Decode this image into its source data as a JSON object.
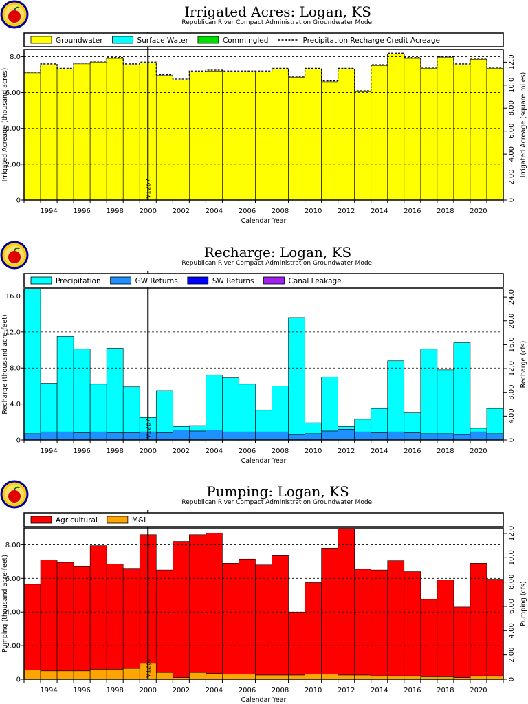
{
  "chart_data": [
    {
      "type": "bar",
      "title": "Irrigated Acres: Logan, KS",
      "subtitle": "Republican River Compact Administration Groundwater Model",
      "xlabel": "Calendar Year",
      "ylabel": "Irrigated Acreage (thousand acres)",
      "y2label": "Irrigated Acreage (square miles)",
      "xlim": [
        1993,
        2021
      ],
      "ylim": [
        0,
        8.4
      ],
      "yticks": [
        0,
        2.0,
        4.0,
        6.0,
        8.0
      ],
      "ytick_labels": [
        "0",
        "2.00",
        "4.00",
        "6.00",
        "8.0"
      ],
      "y2ticks": [
        0,
        2.0,
        4.0,
        6.0,
        8.0,
        10.0,
        12.0
      ],
      "y2tick_labels": [
        "0",
        "2.00",
        "4.00",
        "6.00",
        "8.00",
        "10.0",
        "12.0"
      ],
      "y2lim": [
        0,
        13.1
      ],
      "grid": "horizontal-dashed",
      "legend_position": "top",
      "legend": [
        "Groundwater",
        "Surface Water",
        "Commingled",
        "Precipitation Recharge Credit Acreage"
      ],
      "xtick_labels": [
        "1994",
        "1996",
        "1998",
        "2000",
        "2002",
        "2004",
        "2006",
        "2008",
        "2010",
        "2012",
        "2014",
        "2016",
        "2018",
        "2020"
      ],
      "marker_label": "V12p7",
      "marker_year": 2000.5,
      "stacked": true,
      "years": [
        1993,
        1994,
        1995,
        1996,
        1997,
        1998,
        1999,
        2000,
        2001,
        2002,
        2003,
        2004,
        2005,
        2006,
        2007,
        2008,
        2009,
        2010,
        2011,
        2012,
        2013,
        2014,
        2015,
        2016,
        2017,
        2018,
        2019,
        2020,
        2021
      ],
      "series": [
        {
          "name": "Groundwater",
          "color": "#ffff00",
          "values": [
            7.1,
            7.55,
            7.3,
            7.6,
            7.7,
            7.9,
            7.55,
            7.65,
            6.95,
            6.7,
            7.15,
            7.2,
            7.15,
            7.15,
            7.15,
            7.3,
            6.85,
            7.3,
            6.6,
            7.3,
            6.05,
            7.5,
            8.15,
            7.9,
            7.35,
            7.95,
            7.55,
            7.85,
            7.35
          ]
        },
        {
          "name": "Surface Water",
          "color": "#00ffff",
          "values": [
            0,
            0,
            0,
            0,
            0,
            0,
            0,
            0,
            0,
            0,
            0,
            0,
            0,
            0,
            0,
            0,
            0,
            0,
            0,
            0,
            0,
            0,
            0,
            0,
            0,
            0,
            0,
            0,
            0
          ]
        },
        {
          "name": "Commingled",
          "color": "#00dd00",
          "values": [
            0,
            0,
            0,
            0,
            0,
            0,
            0,
            0,
            0,
            0,
            0,
            0,
            0,
            0,
            0,
            0,
            0,
            0,
            0,
            0,
            0,
            0,
            0,
            0,
            0,
            0,
            0,
            0,
            0
          ]
        }
      ],
      "dashed_line": {
        "name": "Precipitation Recharge Credit Acreage",
        "values": [
          7.15,
          7.6,
          7.35,
          7.65,
          7.75,
          7.95,
          7.6,
          7.7,
          7.0,
          6.75,
          7.2,
          7.25,
          7.2,
          7.2,
          7.2,
          7.35,
          6.9,
          7.35,
          6.65,
          7.35,
          6.1,
          7.55,
          8.2,
          7.95,
          7.4,
          8.0,
          7.6,
          7.9,
          7.4
        ]
      }
    },
    {
      "type": "bar",
      "title": "Recharge: Logan, KS",
      "subtitle": "Republican River Compact Administration Groundwater Model",
      "xlabel": "Calendar Year",
      "ylabel": "Recharge (thousand acre-feet)",
      "y2label": "Recharge (cfs)",
      "xlim": [
        1993,
        2021
      ],
      "ylim": [
        0,
        16.8
      ],
      "yticks": [
        0,
        4.0,
        8.0,
        12.0,
        16.0
      ],
      "ytick_labels": [
        "0",
        "4.0",
        "8.0",
        "12.0",
        "16.0"
      ],
      "y2ticks": [
        0,
        4.0,
        8.0,
        12.0,
        16.0,
        20.0,
        24.0
      ],
      "y2tick_labels": [
        "0",
        "4.00",
        "8.00",
        "12.0",
        "16.0",
        "20.0",
        "24.0"
      ],
      "y2lim": [
        0,
        25.4
      ],
      "grid": "horizontal-dashed",
      "legend_position": "top",
      "legend": [
        "Precipitation",
        "GW Returns",
        "SW Returns",
        "Canal Leakage"
      ],
      "xtick_labels": [
        "1994",
        "1996",
        "1998",
        "2000",
        "2002",
        "2004",
        "2006",
        "2008",
        "2010",
        "2012",
        "2014",
        "2016",
        "2018",
        "2020"
      ],
      "marker_label": "V12p7",
      "marker_year": 2000.5,
      "stacked": true,
      "years": [
        1993,
        1994,
        1995,
        1996,
        1997,
        1998,
        1999,
        2000,
        2001,
        2002,
        2003,
        2004,
        2005,
        2006,
        2007,
        2008,
        2009,
        2010,
        2011,
        2012,
        2013,
        2014,
        2015,
        2016,
        2017,
        2018,
        2019,
        2020,
        2021
      ],
      "series": [
        {
          "name": "GW Returns",
          "color": "#1e90ff",
          "values": [
            0.7,
            0.9,
            0.9,
            0.8,
            0.9,
            0.8,
            0.8,
            0.9,
            0.8,
            1.1,
            1.0,
            1.1,
            0.9,
            0.9,
            0.9,
            0.9,
            0.6,
            0.7,
            1.0,
            1.2,
            0.9,
            0.8,
            0.9,
            0.8,
            0.7,
            0.7,
            0.6,
            0.9,
            0.7
          ]
        },
        {
          "name": "Precipitation",
          "color": "#00ffff",
          "values": [
            16.1,
            5.4,
            10.6,
            9.3,
            5.3,
            9.4,
            5.1,
            1.6,
            4.7,
            0.4,
            0.6,
            6.1,
            6.0,
            5.3,
            2.4,
            5.1,
            13.0,
            1.2,
            6.0,
            0.3,
            1.4,
            2.7,
            7.9,
            2.2,
            9.4,
            7.1,
            10.2,
            0.4,
            2.8
          ]
        },
        {
          "name": "SW Returns",
          "color": "#0000ff",
          "values": [
            0,
            0,
            0,
            0,
            0,
            0,
            0,
            0,
            0,
            0,
            0,
            0,
            0,
            0,
            0,
            0,
            0,
            0,
            0,
            0,
            0,
            0,
            0,
            0,
            0,
            0,
            0,
            0,
            0
          ]
        },
        {
          "name": "Canal Leakage",
          "color": "#a020f0",
          "values": [
            0,
            0,
            0,
            0,
            0,
            0,
            0,
            0,
            0,
            0,
            0,
            0,
            0,
            0,
            0,
            0,
            0,
            0,
            0,
            0,
            0,
            0,
            0,
            0,
            0,
            0,
            0,
            0,
            0
          ]
        }
      ]
    },
    {
      "type": "bar",
      "title": "Pumping: Logan, KS",
      "subtitle": "Republican River Compact Administration Groundwater Model",
      "xlabel": "Calendar Year",
      "ylabel": "Pumping (thousand acre-feet)",
      "y2label": "Pumping (cfs)",
      "xlim": [
        1993,
        2021
      ],
      "ylim": [
        0,
        9.0
      ],
      "yticks": [
        0,
        2.0,
        4.0,
        6.0,
        8.0
      ],
      "ytick_labels": [
        "0",
        "2.00",
        "4.00",
        "6.00",
        "8.00"
      ],
      "y2ticks": [
        0,
        2.0,
        4.0,
        6.0,
        8.0,
        10.0,
        12.0
      ],
      "y2tick_labels": [
        "0",
        "2.00",
        "4.00",
        "6.00",
        "8.00",
        "10.0",
        "12.0"
      ],
      "y2lim": [
        0,
        12.45
      ],
      "grid": "horizontal-dashed",
      "legend_position": "top",
      "legend": [
        "Agricultural",
        "M&I"
      ],
      "xtick_labels": [
        "1994",
        "1996",
        "1998",
        "2000",
        "2002",
        "2004",
        "2006",
        "2008",
        "2010",
        "2012",
        "2014",
        "2016",
        "2018",
        "2020"
      ],
      "marker_label": "V12p7",
      "marker_year": 2000.5,
      "stacked": true,
      "years": [
        1993,
        1994,
        1995,
        1996,
        1997,
        1998,
        1999,
        2000,
        2001,
        2002,
        2003,
        2004,
        2005,
        2006,
        2007,
        2008,
        2009,
        2010,
        2011,
        2012,
        2013,
        2014,
        2015,
        2016,
        2017,
        2018,
        2019,
        2020,
        2021
      ],
      "series": [
        {
          "name": "M&I",
          "color": "#ffa500",
          "values": [
            0.55,
            0.5,
            0.5,
            0.5,
            0.6,
            0.6,
            0.65,
            0.95,
            0.4,
            0.1,
            0.4,
            0.35,
            0.3,
            0.3,
            0.25,
            0.25,
            0.25,
            0.3,
            0.3,
            0.25,
            0.25,
            0.2,
            0.2,
            0.2,
            0.15,
            0.15,
            0.1,
            0.2,
            0.2
          ]
        },
        {
          "name": "Agricultural",
          "color": "#ff0000",
          "values": [
            5.1,
            6.6,
            6.45,
            6.2,
            7.35,
            6.25,
            5.95,
            7.65,
            6.1,
            8.1,
            8.2,
            8.35,
            6.6,
            6.85,
            6.55,
            7.1,
            3.75,
            5.45,
            7.5,
            8.7,
            6.3,
            6.3,
            6.85,
            6.2,
            4.6,
            5.75,
            4.2,
            6.7,
            5.75
          ]
        }
      ]
    }
  ]
}
